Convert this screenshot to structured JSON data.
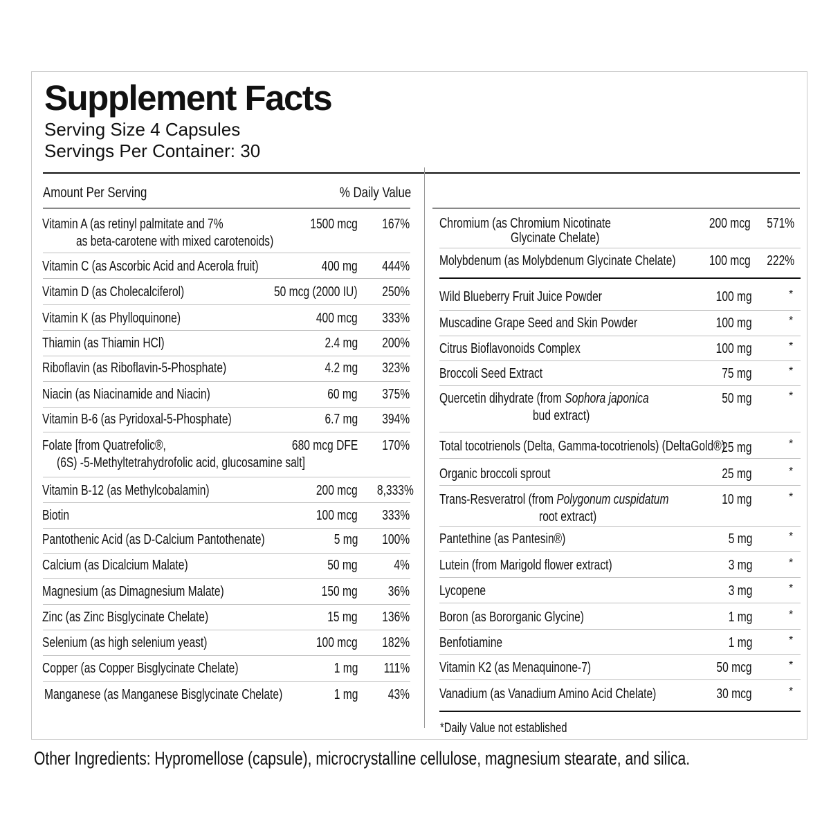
{
  "panel": {
    "title": "Supplement Facts",
    "serving_size": "Serving Size 4 Capsules",
    "servings_per_container": "Servings Per Container: 30",
    "header_amount": "Amount Per Serving",
    "header_dv": "% Daily Value"
  },
  "left_rows": [
    {
      "name": "Vitamin A  (as retinyl palmitate and 7%",
      "name2": "as beta-carotene with mixed carotenoids)",
      "amount": "1500 mcg",
      "dv": "167%"
    },
    {
      "name": "Vitamin C (as Ascorbic Acid and Acerola fruit)",
      "amount": "400 mg",
      "dv": "444%"
    },
    {
      "name": "Vitamin D (as Cholecalciferol)",
      "amount": "50 mcg (2000 IU)",
      "dv": "250%"
    },
    {
      "name": "Vitamin K (as Phylloquinone)",
      "amount": "400 mcg",
      "dv": "333%"
    },
    {
      "name": "Thiamin (as Thiamin HCl)",
      "amount": "2.4 mg",
      "dv": "200%"
    },
    {
      "name": "Riboflavin (as Riboflavin-5-Phosphate)",
      "amount": "4.2 mg",
      "dv": "323%"
    },
    {
      "name": "Niacin (as Niacinamide and Niacin)",
      "amount": "60 mg",
      "dv": "375%"
    },
    {
      "name": "Vitamin B-6 (as Pyridoxal-5-Phosphate)",
      "amount": "6.7 mg",
      "dv": "394%"
    },
    {
      "name": "Folate [from Quatrefolic®,",
      "name2": "(6S) -5-Methyltetrahydrofolic acid, glucosamine salt]",
      "amount": "680 mcg DFE",
      "dv": "170%"
    },
    {
      "name": "Vitamin B-12 (as Methylcobalamin)",
      "amount": "200 mcg",
      "dv": "8,333%"
    },
    {
      "name": "Biotin",
      "amount": "100 mcg",
      "dv": "333%"
    },
    {
      "name": "Pantothenic Acid (as D-Calcium Pantothenate)",
      "amount": "5 mg",
      "dv": "100%"
    },
    {
      "name": "Calcium (as Dicalcium Malate)",
      "amount": "50 mg",
      "dv": "4%"
    },
    {
      "name": "Magnesium (as Dimagnesium Malate)",
      "amount": "150 mg",
      "dv": "36%"
    },
    {
      "name": "Zinc (as Zinc Bisglycinate Chelate)",
      "amount": "15 mg",
      "dv": "136%"
    },
    {
      "name": "Selenium (as high selenium yeast)",
      "amount": "100 mcg",
      "dv": "182%"
    },
    {
      "name": "Copper (as Copper Bisglycinate Chelate)",
      "amount": "1 mg",
      "dv": "111%"
    },
    {
      "name": "Manganese  (as Manganese Bisglycinate Chelate)",
      "amount": "1 mg",
      "dv": "43%"
    }
  ],
  "right_rows_dv": [
    {
      "name": "Chromium (as Chromium Nicotinate",
      "name2": "Glycinate Chelate)",
      "amount": "200 mcg",
      "dv": "571%"
    },
    {
      "name": "Molybdenum (as Molybdenum Glycinate Chelate)",
      "amount": "100 mcg",
      "dv": "222%"
    }
  ],
  "right_rows_other": [
    {
      "name": "Wild Blueberry Fruit Juice Powder",
      "amount": "100 mg",
      "dv": "*"
    },
    {
      "name": "Muscadine Grape Seed and Skin Powder",
      "amount": "100 mg",
      "dv": "*"
    },
    {
      "name": "Citrus Bioflavonoids Complex",
      "amount": "100 mg",
      "dv": "*"
    },
    {
      "name": "Broccoli Seed Extract",
      "amount": "75 mg",
      "dv": "*"
    },
    {
      "name": "Quercetin dihydrate (from ",
      "name_italic": "Sophora japonica",
      "name2": "bud extract)",
      "amount": "50 mg",
      "dv": "*"
    },
    {
      "name": "Total tocotrienols (Delta, Gamma-tocotrienols) (DeltaGold®)",
      "amount": "25 mg",
      "dv": "*"
    },
    {
      "name": "Organic broccoli sprout",
      "amount": "25 mg",
      "dv": "*"
    },
    {
      "name": "Trans-Resveratrol (from ",
      "name_italic": "Polygonum cuspidatum",
      "name2": "root extract)",
      "amount": "10 mg",
      "dv": "*"
    },
    {
      "name": "Pantethine (as Pantesin®)",
      "amount": "5 mg",
      "dv": "*"
    },
    {
      "name": "Lutein (from Marigold flower extract)",
      "amount": "3 mg",
      "dv": "*"
    },
    {
      "name": "Lycopene",
      "amount": "3 mg",
      "dv": "*"
    },
    {
      "name": "Boron (as Bororganic Glycine)",
      "amount": "1 mg",
      "dv": "*"
    },
    {
      "name": "Benfotiamine",
      "amount": "1 mg",
      "dv": "*"
    },
    {
      "name": "Vitamin K2 (as Menaquinone-7)",
      "amount": "50 mcg",
      "dv": "*"
    },
    {
      "name": "Vanadium  (as Vanadium Amino Acid Chelate)",
      "amount": "30 mcg",
      "dv": "*"
    }
  ],
  "footnote": "*Daily Value not established",
  "other_ingredients": "Other Ingredients: Hypromellose (capsule), microcrystalline cellulose, magnesium stearate, and silica."
}
